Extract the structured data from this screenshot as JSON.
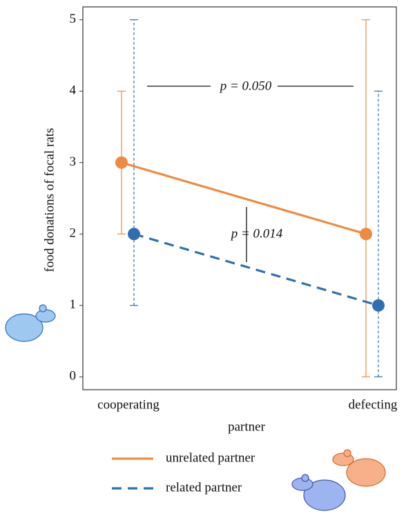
{
  "chart_data": {
    "type": "line",
    "y_label": "food donations of focal rats",
    "x_label": "partner",
    "categories": [
      "cooperating",
      "defecting"
    ],
    "series": [
      {
        "name": "unrelated partner",
        "color": "#f08a3e",
        "dashed": false,
        "values": [
          3,
          2
        ],
        "lower": [
          2,
          0
        ],
        "upper": [
          4,
          5
        ]
      },
      {
        "name": "related partner",
        "color": "#2f6fb0",
        "dashed": true,
        "values": [
          2,
          1
        ],
        "lower": [
          1,
          0
        ],
        "upper": [
          5,
          4
        ]
      }
    ],
    "ylim": [
      -0.18,
      5.18
    ],
    "yticks": [
      0,
      1,
      2,
      3,
      4,
      5
    ],
    "annotations": [
      "p = 0.050",
      "p = 0.014"
    ]
  }
}
